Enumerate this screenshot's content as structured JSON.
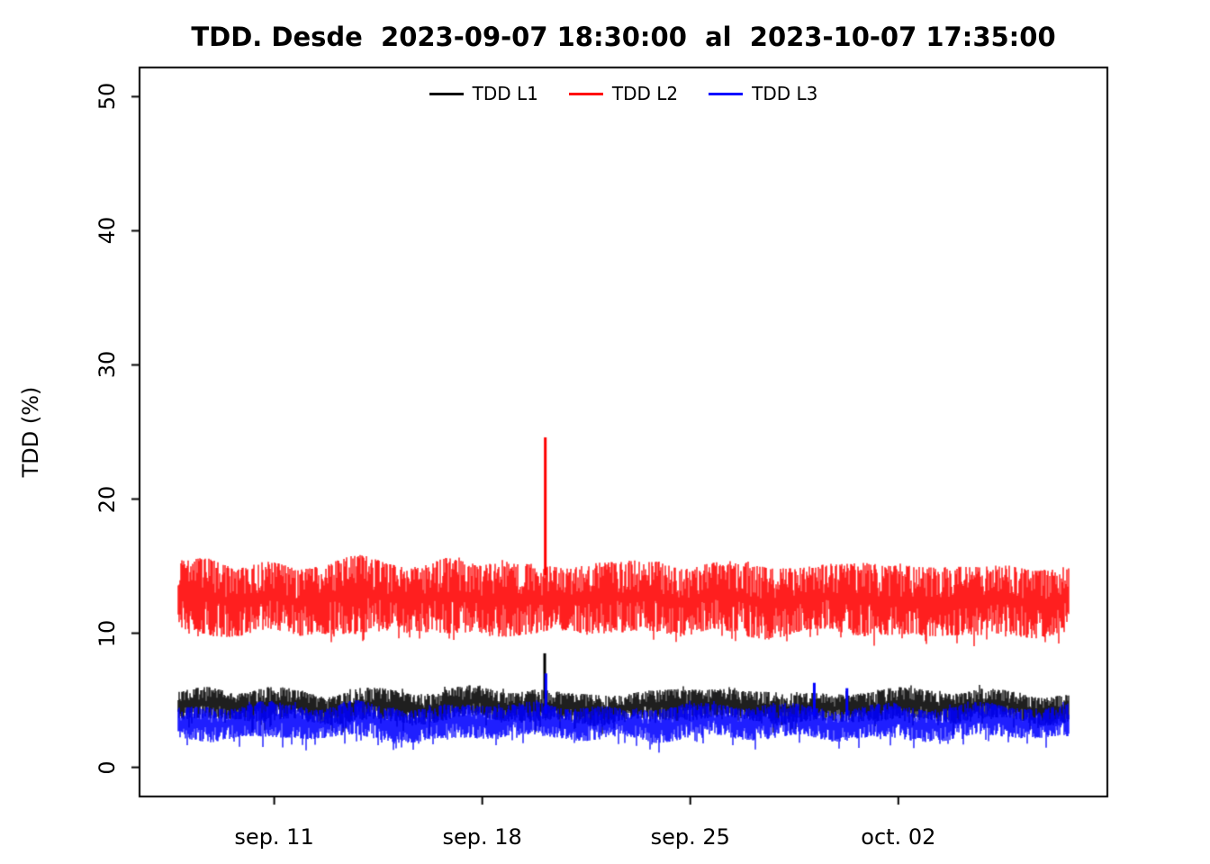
{
  "colors": {
    "background": "#FFFFFF",
    "axis": "#000000",
    "series_l1": "#000000",
    "series_l2": "#FF0000",
    "series_l3": "#0000FF"
  },
  "chart_data": {
    "type": "line",
    "title": "TDD. Desde  2023-09-07 18:30:00  al  2023-10-07 17:35:00",
    "xlabel": "",
    "ylabel": "TDD (%)",
    "ylim": [
      0,
      50
    ],
    "y_ticks": [
      0,
      10,
      20,
      30,
      40,
      50
    ],
    "grid": false,
    "legend_position": "top-center",
    "x_range": {
      "start": "2023-09-07 18:30:00",
      "end": "2023-10-07 17:35:00",
      "span_days": 29.96
    },
    "x_ticks": [
      {
        "label": "sep. 11",
        "day": 3.229
      },
      {
        "label": "sep. 18",
        "day": 10.229
      },
      {
        "label": "sep. 25",
        "day": 17.229
      },
      {
        "label": "oct. 02",
        "day": 24.229
      }
    ],
    "legend": [
      {
        "label": "TDD L1",
        "color": "#000000"
      },
      {
        "label": "TDD L2",
        "color": "#FF0000"
      },
      {
        "label": "TDD L3",
        "color": "#0000FF"
      }
    ],
    "series": [
      {
        "name": "TDD L1",
        "color": "#000000",
        "band": {
          "days_step": 1,
          "lo": [
            3.5,
            3.4,
            3.6,
            3.3,
            3.5,
            3.4,
            3.6,
            3.5,
            3.3,
            3.4,
            3.6,
            3.5,
            3.4,
            3.5,
            3.3,
            3.6,
            3.4,
            3.5,
            3.6,
            3.4,
            3.3,
            3.5,
            3.4,
            3.6,
            3.5,
            3.4,
            3.3,
            3.5,
            3.6,
            3.4,
            3.5
          ],
          "hi": [
            5.6,
            5.8,
            5.5,
            5.9,
            5.7,
            5.4,
            6.0,
            5.8,
            5.5,
            5.7,
            5.9,
            5.6,
            5.8,
            5.5,
            5.7,
            5.4,
            5.6,
            5.9,
            5.7,
            5.5,
            5.8,
            5.6,
            5.4,
            5.7,
            5.9,
            5.6,
            5.5,
            5.8,
            5.6,
            5.4,
            5.6
          ]
        },
        "spikes": [
          {
            "day": 12.33,
            "peak": 8.5
          }
        ]
      },
      {
        "name": "TDD L2",
        "color": "#FF0000",
        "band": {
          "days_step": 1,
          "lo": [
            10.2,
            9.8,
            10.0,
            10.3,
            9.9,
            10.1,
            9.7,
            10.0,
            10.2,
            9.8,
            10.1,
            10.0,
            9.9,
            10.2,
            10.0,
            9.8,
            10.1,
            9.9,
            10.3,
            10.0,
            9.7,
            10.0,
            10.2,
            9.8,
            9.6,
            9.9,
            10.1,
            9.8,
            10.0,
            9.7,
            9.9
          ],
          "hi": [
            15.2,
            15.6,
            15.0,
            15.4,
            14.8,
            15.3,
            15.7,
            15.1,
            14.9,
            15.5,
            15.2,
            15.6,
            15.0,
            14.8,
            15.3,
            15.1,
            15.4,
            14.9,
            15.2,
            15.5,
            15.0,
            14.7,
            15.1,
            15.3,
            14.8,
            15.0,
            15.2,
            14.9,
            15.1,
            14.8,
            14.6
          ]
        },
        "spikes": [
          {
            "day": 12.35,
            "peak": 24.6
          }
        ]
      },
      {
        "name": "TDD L3",
        "color": "#0000FF",
        "band": {
          "days_step": 1,
          "lo": [
            2.2,
            2.1,
            2.3,
            2.0,
            2.2,
            2.1,
            2.3,
            2.2,
            2.0,
            2.1,
            2.3,
            2.2,
            2.1,
            2.2,
            2.0,
            2.3,
            2.1,
            2.2,
            2.3,
            2.1,
            2.0,
            2.2,
            2.1,
            2.3,
            2.2,
            2.1,
            2.0,
            2.2,
            2.3,
            2.1,
            2.2
          ],
          "hi": [
            4.5,
            4.7,
            4.4,
            4.8,
            4.6,
            4.3,
            4.9,
            4.7,
            4.4,
            4.6,
            4.8,
            4.5,
            4.7,
            4.4,
            4.6,
            4.3,
            4.5,
            4.8,
            4.6,
            4.4,
            4.7,
            4.5,
            4.3,
            4.6,
            4.8,
            4.5,
            4.4,
            4.7,
            4.5,
            4.3,
            4.5
          ]
        },
        "spikes": [
          {
            "day": 12.37,
            "peak": 7.0
          },
          {
            "day": 21.4,
            "peak": 6.3
          },
          {
            "day": 22.5,
            "peak": 5.9
          }
        ]
      }
    ]
  }
}
